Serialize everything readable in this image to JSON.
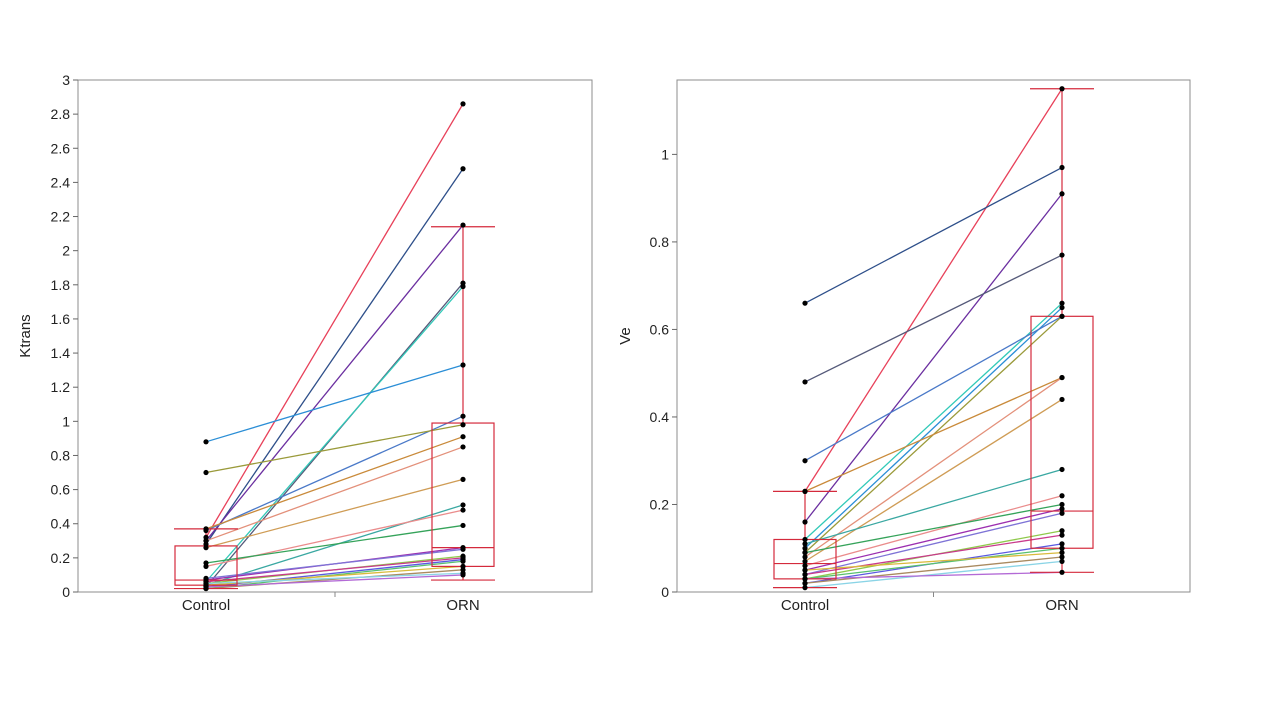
{
  "colors": {
    "box": "#d42a3c",
    "point": "#000000",
    "frame": "#8c8c8c",
    "palette": [
      "#e8415a",
      "#2e4f8a",
      "#6b2fa0",
      "#555a7a",
      "#31c9b8",
      "#2b8ed6",
      "#4a79c8",
      "#9a9a3a",
      "#c98a3a",
      "#e3907a",
      "#cf9c55",
      "#3aa8a2",
      "#ea8c8c",
      "#35a35a",
      "#9c2fb0",
      "#7e73d6",
      "#8fc94b",
      "#c93a8c",
      "#5a5ae0",
      "#58c070",
      "#d9ba3c",
      "#a98a60",
      "#8ad4e6",
      "#b36ad6"
    ]
  },
  "chart_data": [
    {
      "type": "line",
      "categories": [
        "Control",
        "ORN"
      ],
      "ylabel": "Ktrans",
      "ylim": [
        0,
        3
      ],
      "yticks": [
        0,
        0.2,
        0.4,
        0.6,
        0.8,
        1,
        1.2,
        1.4,
        1.6,
        1.8,
        2,
        2.2,
        2.4,
        2.6,
        2.8,
        3
      ],
      "ytick_labels": [
        "0",
        "0.2",
        "0.4",
        "0.6",
        "0.8",
        "1",
        "1.2",
        "1.4",
        "1.6",
        "1.8",
        "2",
        "2.2",
        "2.4",
        "2.6",
        "2.8",
        "3"
      ],
      "pairs": [
        [
          0.32,
          2.86
        ],
        [
          0.28,
          2.48
        ],
        [
          0.3,
          2.15
        ],
        [
          0.03,
          1.81
        ],
        [
          0.06,
          1.79
        ],
        [
          0.88,
          1.33
        ],
        [
          0.36,
          1.03
        ],
        [
          0.7,
          0.98
        ],
        [
          0.37,
          0.91
        ],
        [
          0.3,
          0.85
        ],
        [
          0.26,
          0.66
        ],
        [
          0.04,
          0.51
        ],
        [
          0.15,
          0.48
        ],
        [
          0.17,
          0.39
        ],
        [
          0.07,
          0.26
        ],
        [
          0.08,
          0.25
        ],
        [
          0.05,
          0.21
        ],
        [
          0.06,
          0.2
        ],
        [
          0.03,
          0.19
        ],
        [
          0.02,
          0.18
        ],
        [
          0.04,
          0.15
        ],
        [
          0.02,
          0.13
        ],
        [
          0.05,
          0.11
        ],
        [
          0.03,
          0.1
        ]
      ],
      "boxes": [
        {
          "q1": 0.04,
          "median": 0.07,
          "q3": 0.27,
          "whisker_low": 0.02,
          "whisker_high": 0.37
        },
        {
          "q1": 0.15,
          "median": 0.26,
          "q3": 0.99,
          "whisker_low": 0.07,
          "whisker_high": 2.14
        }
      ]
    },
    {
      "type": "line",
      "categories": [
        "Control",
        "ORN"
      ],
      "ylabel": "Ve",
      "ylim": [
        0,
        1.17
      ],
      "yticks": [
        0,
        0.2,
        0.4,
        0.6,
        0.8,
        1
      ],
      "ytick_labels": [
        "0",
        "0.2",
        "0.4",
        "0.6",
        "0.8",
        "1"
      ],
      "pairs": [
        [
          0.23,
          1.15
        ],
        [
          0.66,
          0.97
        ],
        [
          0.16,
          0.91
        ],
        [
          0.48,
          0.77
        ],
        [
          0.12,
          0.66
        ],
        [
          0.1,
          0.65
        ],
        [
          0.3,
          0.63
        ],
        [
          0.09,
          0.63
        ],
        [
          0.23,
          0.49
        ],
        [
          0.08,
          0.49
        ],
        [
          0.07,
          0.44
        ],
        [
          0.11,
          0.28
        ],
        [
          0.06,
          0.22
        ],
        [
          0.09,
          0.2
        ],
        [
          0.05,
          0.19
        ],
        [
          0.04,
          0.18
        ],
        [
          0.03,
          0.14
        ],
        [
          0.04,
          0.13
        ],
        [
          0.02,
          0.11
        ],
        [
          0.03,
          0.1
        ],
        [
          0.05,
          0.09
        ],
        [
          0.02,
          0.08
        ],
        [
          0.01,
          0.07
        ],
        [
          0.03,
          0.045
        ]
      ],
      "boxes": [
        {
          "q1": 0.03,
          "median": 0.065,
          "q3": 0.12,
          "whisker_low": 0.01,
          "whisker_high": 0.23
        },
        {
          "q1": 0.1,
          "median": 0.185,
          "q3": 0.63,
          "whisker_low": 0.045,
          "whisker_high": 1.15
        }
      ]
    }
  ]
}
